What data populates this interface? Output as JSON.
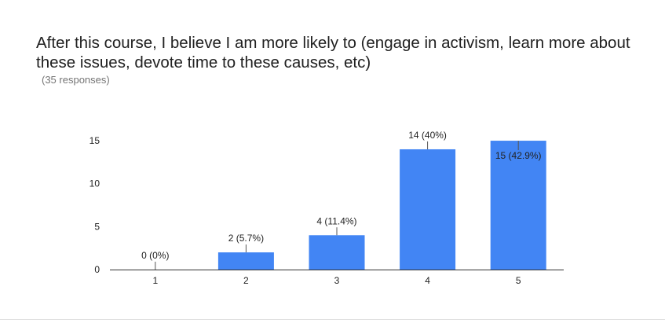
{
  "question": {
    "title": "After this course, I believe I am more likely to (engage in activism, learn more about these issues, devote time to these causes, etc)",
    "responses_label": "(35 responses)"
  },
  "chart_data": {
    "type": "bar",
    "categories": [
      "1",
      "2",
      "3",
      "4",
      "5"
    ],
    "values": [
      0,
      2,
      4,
      14,
      15
    ],
    "data_labels": [
      "0 (0%)",
      "2 (5.7%)",
      "4 (11.4%)",
      "14 (40%)",
      "15 (42.9%)"
    ],
    "y_ticks": [
      0,
      5,
      10,
      15
    ],
    "ylim": [
      0,
      15
    ],
    "title": "",
    "xlabel": "",
    "ylabel": "",
    "grid": false,
    "colors": {
      "bar": "#4285f4",
      "axis": "#333333",
      "tick_label": "#222222",
      "data_label": "#222222"
    }
  }
}
